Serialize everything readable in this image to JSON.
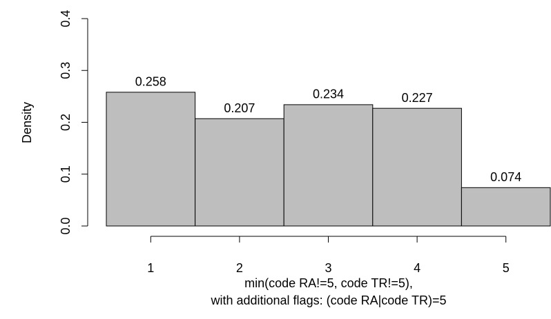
{
  "chart_data": {
    "type": "histogram",
    "x_label": [
      "min(code RA!=5, code TR!=5),",
      "with additional flags: (code RA|code TR)=5"
    ],
    "y_label": "Density",
    "bins": [
      0.5,
      1.5,
      2.5,
      3.5,
      4.5,
      5.5
    ],
    "values": [
      0.258,
      0.207,
      0.234,
      0.227,
      0.074
    ],
    "color": "#bebebe",
    "xlim": [
      0.5,
      5.5
    ],
    "xticks": [
      1,
      2,
      3,
      4,
      5
    ],
    "ylim": [
      0,
      0.4
    ],
    "yticks": [
      {
        "value": 0,
        "label": "0.0"
      },
      0.1,
      0.2,
      0.3,
      0.4
    ]
  }
}
